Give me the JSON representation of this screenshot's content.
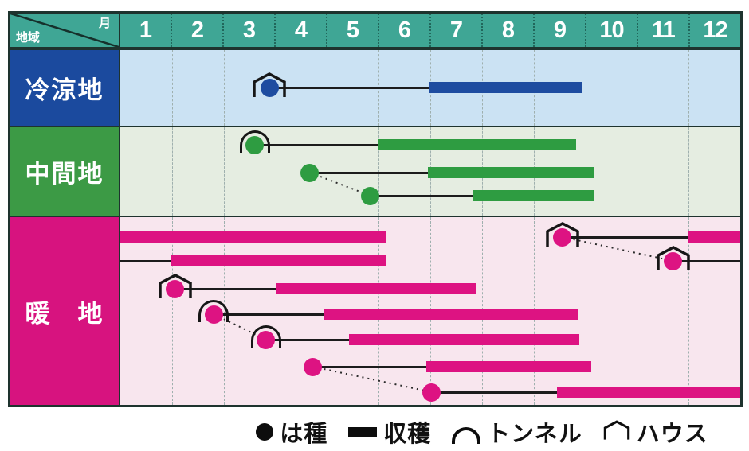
{
  "header": {
    "corner": {
      "top_label": "月",
      "bottom_label": "地域"
    },
    "months": [
      "1",
      "2",
      "3",
      "4",
      "5",
      "6",
      "7",
      "8",
      "9",
      "10",
      "11",
      "12"
    ]
  },
  "legend": [
    {
      "icon": "sowing-dot-icon",
      "label": "は種"
    },
    {
      "icon": "harvest-bar-icon",
      "label": "収穫"
    },
    {
      "icon": "tunnel-icon",
      "label": "トンネル"
    },
    {
      "icon": "house-icon",
      "label": "ハウス"
    }
  ],
  "colors": {
    "header_bg": "#3FA695",
    "border": "#1E332E",
    "line": "#1C1C1C",
    "gridline": "#9FB0AE",
    "legend_glyph": "#0D0D0D"
  },
  "chart_data": {
    "type": "gantt-calendar",
    "title": "",
    "x_units": "month position, 0 = start of January, 12 = end of December",
    "x_range": [
      0,
      12
    ],
    "marker_meanings": {
      "dot": "は種 (sowing)",
      "bar": "収穫 (harvest)",
      "tunnel": "トンネル",
      "house": "ハウス"
    },
    "rows": [
      {
        "label": "冷涼地",
        "label_bg": "#1B4A9E",
        "row_bg": "#CBE2F3",
        "series_color": "#1E4CA0",
        "entries": [
          {
            "y": 47,
            "dot": 2.89,
            "marker": "house",
            "lines": [
              [
                2.89,
                5.97
              ]
            ],
            "bars": [
              [
                5.97,
                8.95
              ]
            ]
          }
        ],
        "connectors": []
      },
      {
        "label": "中間地",
        "label_bg": "#3C9A45",
        "row_bg": "#E5EDE1",
        "series_color": "#2E9C41",
        "entries": [
          {
            "y": 22,
            "dot": 2.6,
            "marker": "tunnel",
            "lines": [
              [
                2.6,
                5.0
              ]
            ],
            "bars": [
              [
                5.0,
                8.82
              ]
            ]
          },
          {
            "y": 57,
            "dot": 3.67,
            "marker": null,
            "lines": [
              [
                3.67,
                5.95
              ]
            ],
            "bars": [
              [
                5.95,
                9.17
              ]
            ]
          },
          {
            "y": 86,
            "dot": 4.84,
            "marker": null,
            "lines": [
              [
                4.84,
                6.84
              ]
            ],
            "bars": [
              [
                6.84,
                9.18
              ]
            ]
          }
        ],
        "connectors": [
          {
            "from": 1,
            "to": 2
          }
        ]
      },
      {
        "label": "暖　地",
        "label_bg": "#D7137F",
        "row_bg": "#F8E6EE",
        "series_color": "#DD1382",
        "entries": [
          {
            "y": 25,
            "dot": 8.56,
            "marker": "house",
            "lines": [
              [
                8.56,
                10.99
              ]
            ],
            "bars": [
              [
                0,
                5.13
              ],
              [
                10.99,
                12
              ]
            ]
          },
          {
            "y": 55,
            "dot": 10.7,
            "marker": "house",
            "lines": [
              [
                0,
                0.98
              ],
              [
                10.7,
                12
              ]
            ],
            "bars": [
              [
                0.98,
                5.13
              ]
            ]
          },
          {
            "y": 90,
            "dot": 1.06,
            "marker": "house",
            "lines": [
              [
                1.06,
                3.03
              ]
            ],
            "bars": [
              [
                3.03,
                6.9
              ]
            ]
          },
          {
            "y": 122,
            "dot": 1.81,
            "marker": "tunnel",
            "lines": [
              [
                1.81,
                3.93
              ]
            ],
            "bars": [
              [
                3.93,
                8.86
              ]
            ]
          },
          {
            "y": 154,
            "dot": 2.82,
            "marker": "tunnel",
            "lines": [
              [
                2.82,
                4.42
              ]
            ],
            "bars": [
              [
                4.42,
                8.88
              ]
            ]
          },
          {
            "y": 188,
            "dot": 3.73,
            "marker": null,
            "lines": [
              [
                3.73,
                5.92
              ]
            ],
            "bars": [
              [
                5.92,
                9.11
              ]
            ]
          },
          {
            "y": 220,
            "dot": 6.03,
            "marker": null,
            "lines": [
              [
                6.03,
                8.45
              ]
            ],
            "bars": [
              [
                8.45,
                12
              ]
            ]
          }
        ],
        "connectors": [
          {
            "from": 0,
            "to": 1
          },
          {
            "from": 3,
            "to": 4
          },
          {
            "from": 5,
            "to": 6
          }
        ]
      }
    ]
  }
}
